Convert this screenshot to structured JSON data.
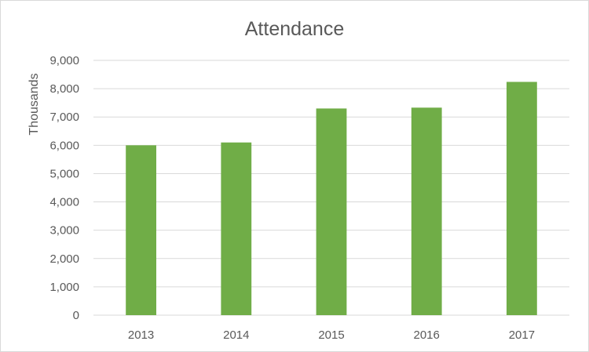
{
  "chart_data": {
    "type": "bar",
    "title": "Attendance",
    "xlabel": "",
    "ylabel": "Thousands",
    "categories": [
      "2013",
      "2014",
      "2015",
      "2016",
      "2017"
    ],
    "values": [
      6000,
      6100,
      7300,
      7330,
      8240
    ],
    "ylim": [
      0,
      9000
    ],
    "yticks": [
      "0",
      "1,000",
      "2,000",
      "3,000",
      "4,000",
      "5,000",
      "6,000",
      "7,000",
      "8,000",
      "9,000"
    ],
    "grid": true,
    "legend": "none",
    "bar_color": "#70ad47",
    "gridline_color": "#d9d9d9",
    "text_color": "#595959"
  }
}
